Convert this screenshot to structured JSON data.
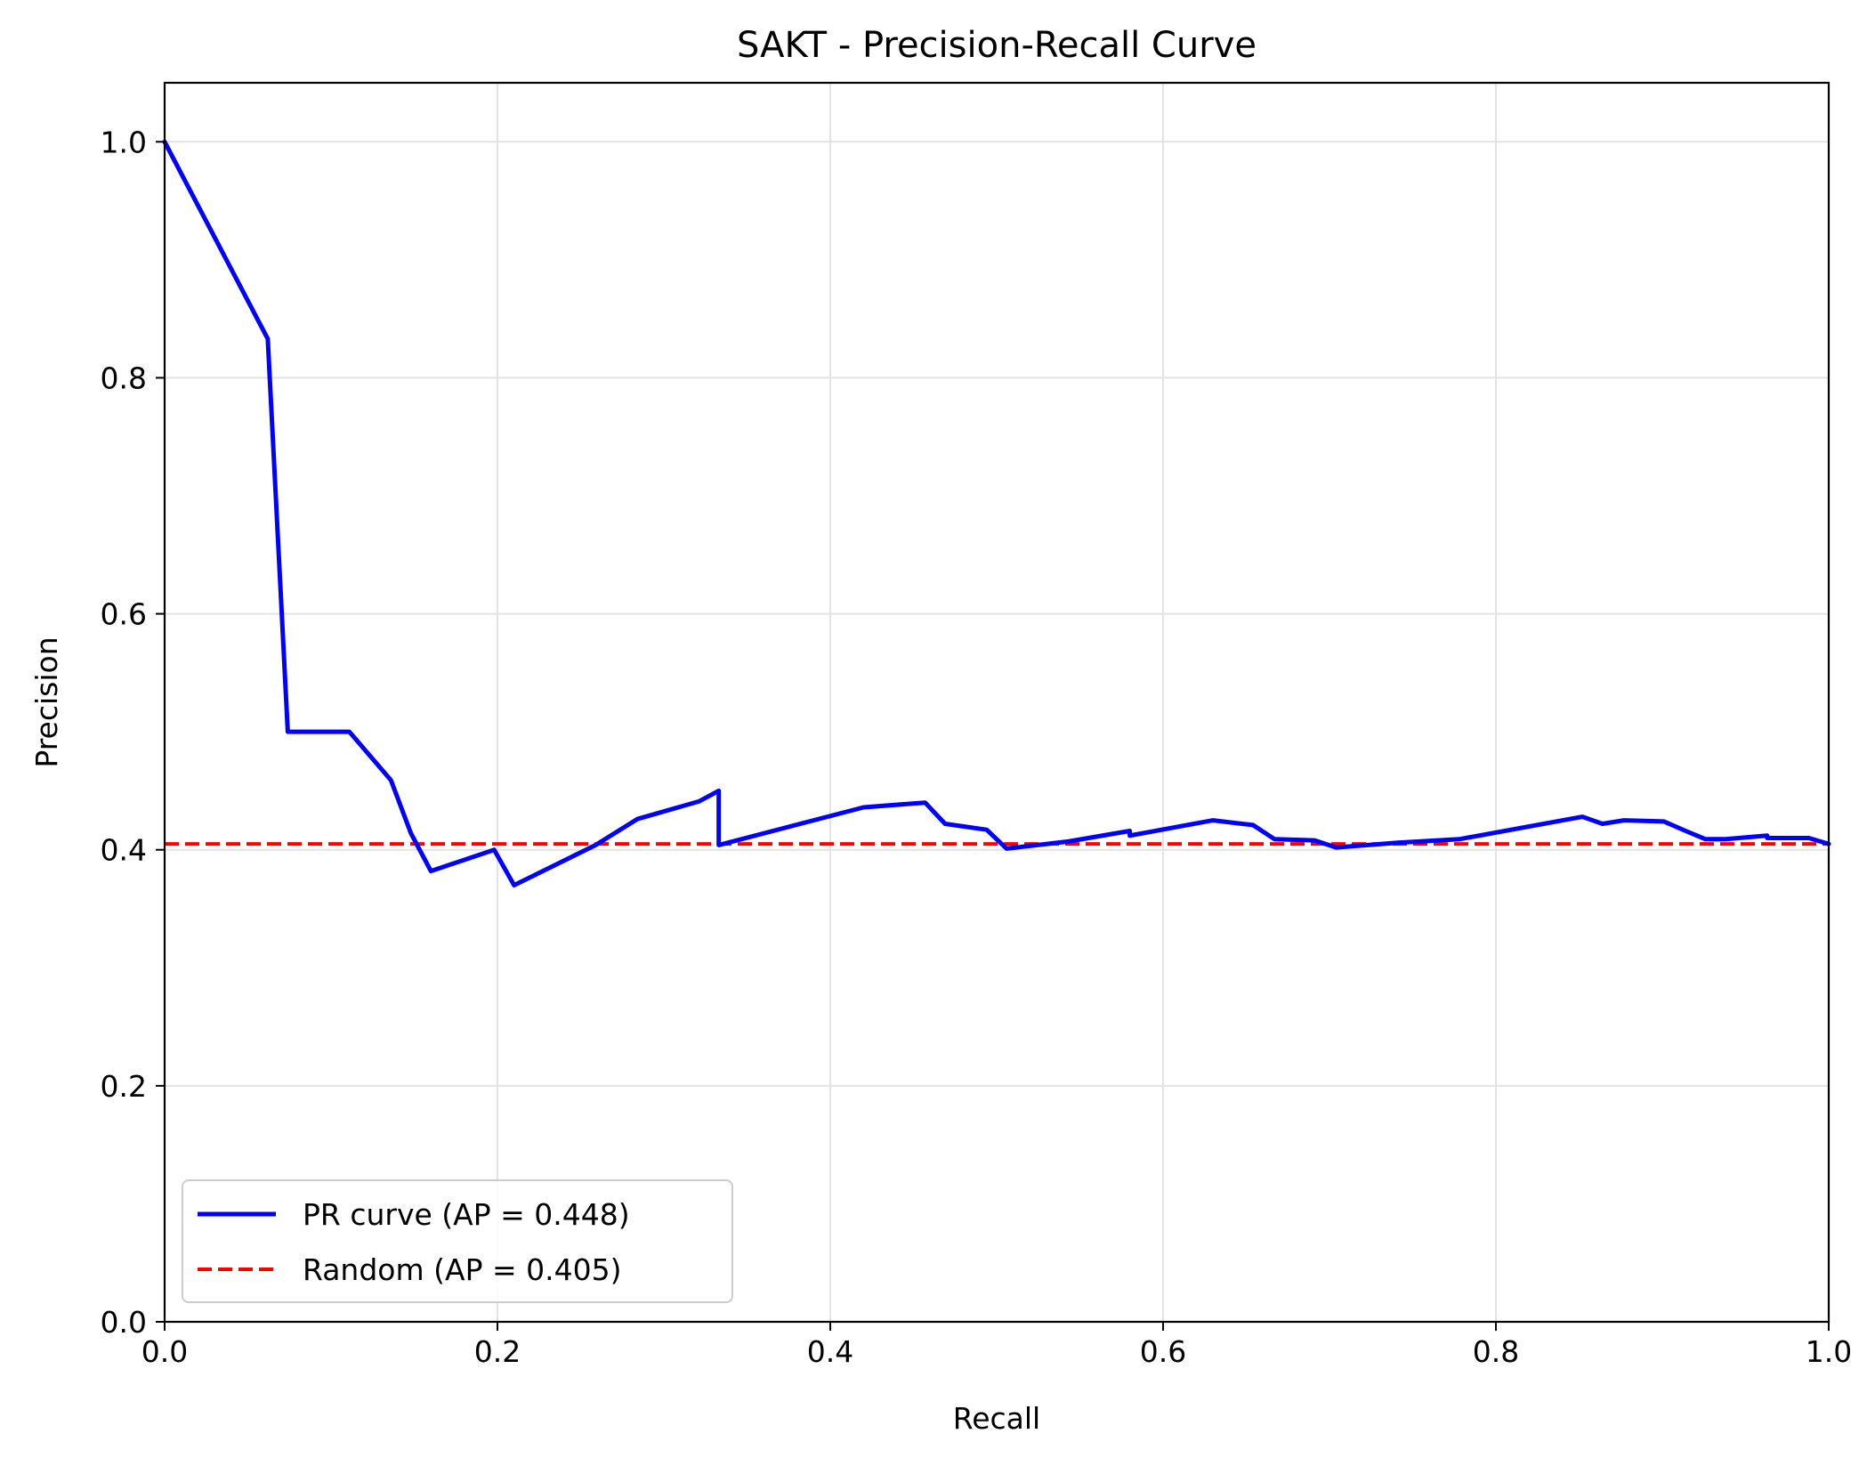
{
  "chart_data": {
    "type": "line",
    "title": "SAKT - Precision-Recall Curve",
    "xlabel": "Recall",
    "ylabel": "Precision",
    "xlim": [
      0.0,
      1.0
    ],
    "ylim": [
      0.0,
      1.05
    ],
    "xticks": [
      0.0,
      0.2,
      0.4,
      0.6,
      0.8,
      1.0
    ],
    "xtick_labels": [
      "0.0",
      "0.2",
      "0.4",
      "0.6",
      "0.8",
      "1.0"
    ],
    "yticks": [
      0.0,
      0.2,
      0.4,
      0.6,
      0.8,
      1.0
    ],
    "ytick_labels": [
      "0.0",
      "0.2",
      "0.4",
      "0.6",
      "0.8",
      "1.0"
    ],
    "grid": true,
    "legend_position": "lower-left",
    "series": [
      {
        "name": "PR curve (AP = 0.448)",
        "color": "#0000ff",
        "style": "solid",
        "x": [
          0.0,
          0.062,
          0.074,
          0.111,
          0.136,
          0.148,
          0.16,
          0.198,
          0.21,
          0.259,
          0.284,
          0.321,
          0.333,
          0.333,
          0.42,
          0.457,
          0.469,
          0.494,
          0.506,
          0.543,
          0.58,
          0.58,
          0.63,
          0.654,
          0.667,
          0.691,
          0.704,
          0.741,
          0.778,
          0.852,
          0.864,
          0.877,
          0.901,
          0.914,
          0.926,
          0.938,
          0.963,
          0.963,
          0.988,
          1.0
        ],
        "y": [
          1.0,
          0.833,
          0.5,
          0.5,
          0.459,
          0.414,
          0.382,
          0.4,
          0.37,
          0.404,
          0.426,
          0.441,
          0.45,
          0.404,
          0.436,
          0.44,
          0.422,
          0.417,
          0.401,
          0.407,
          0.416,
          0.412,
          0.425,
          0.421,
          0.409,
          0.408,
          0.402,
          0.406,
          0.409,
          0.428,
          0.422,
          0.425,
          0.424,
          0.416,
          0.409,
          0.409,
          0.412,
          0.41,
          0.41,
          0.405
        ]
      },
      {
        "name": "Random (AP = 0.405)",
        "color": "#ff0000",
        "style": "dashed",
        "x": [
          0.0,
          1.0
        ],
        "y": [
          0.405,
          0.405
        ]
      }
    ]
  }
}
